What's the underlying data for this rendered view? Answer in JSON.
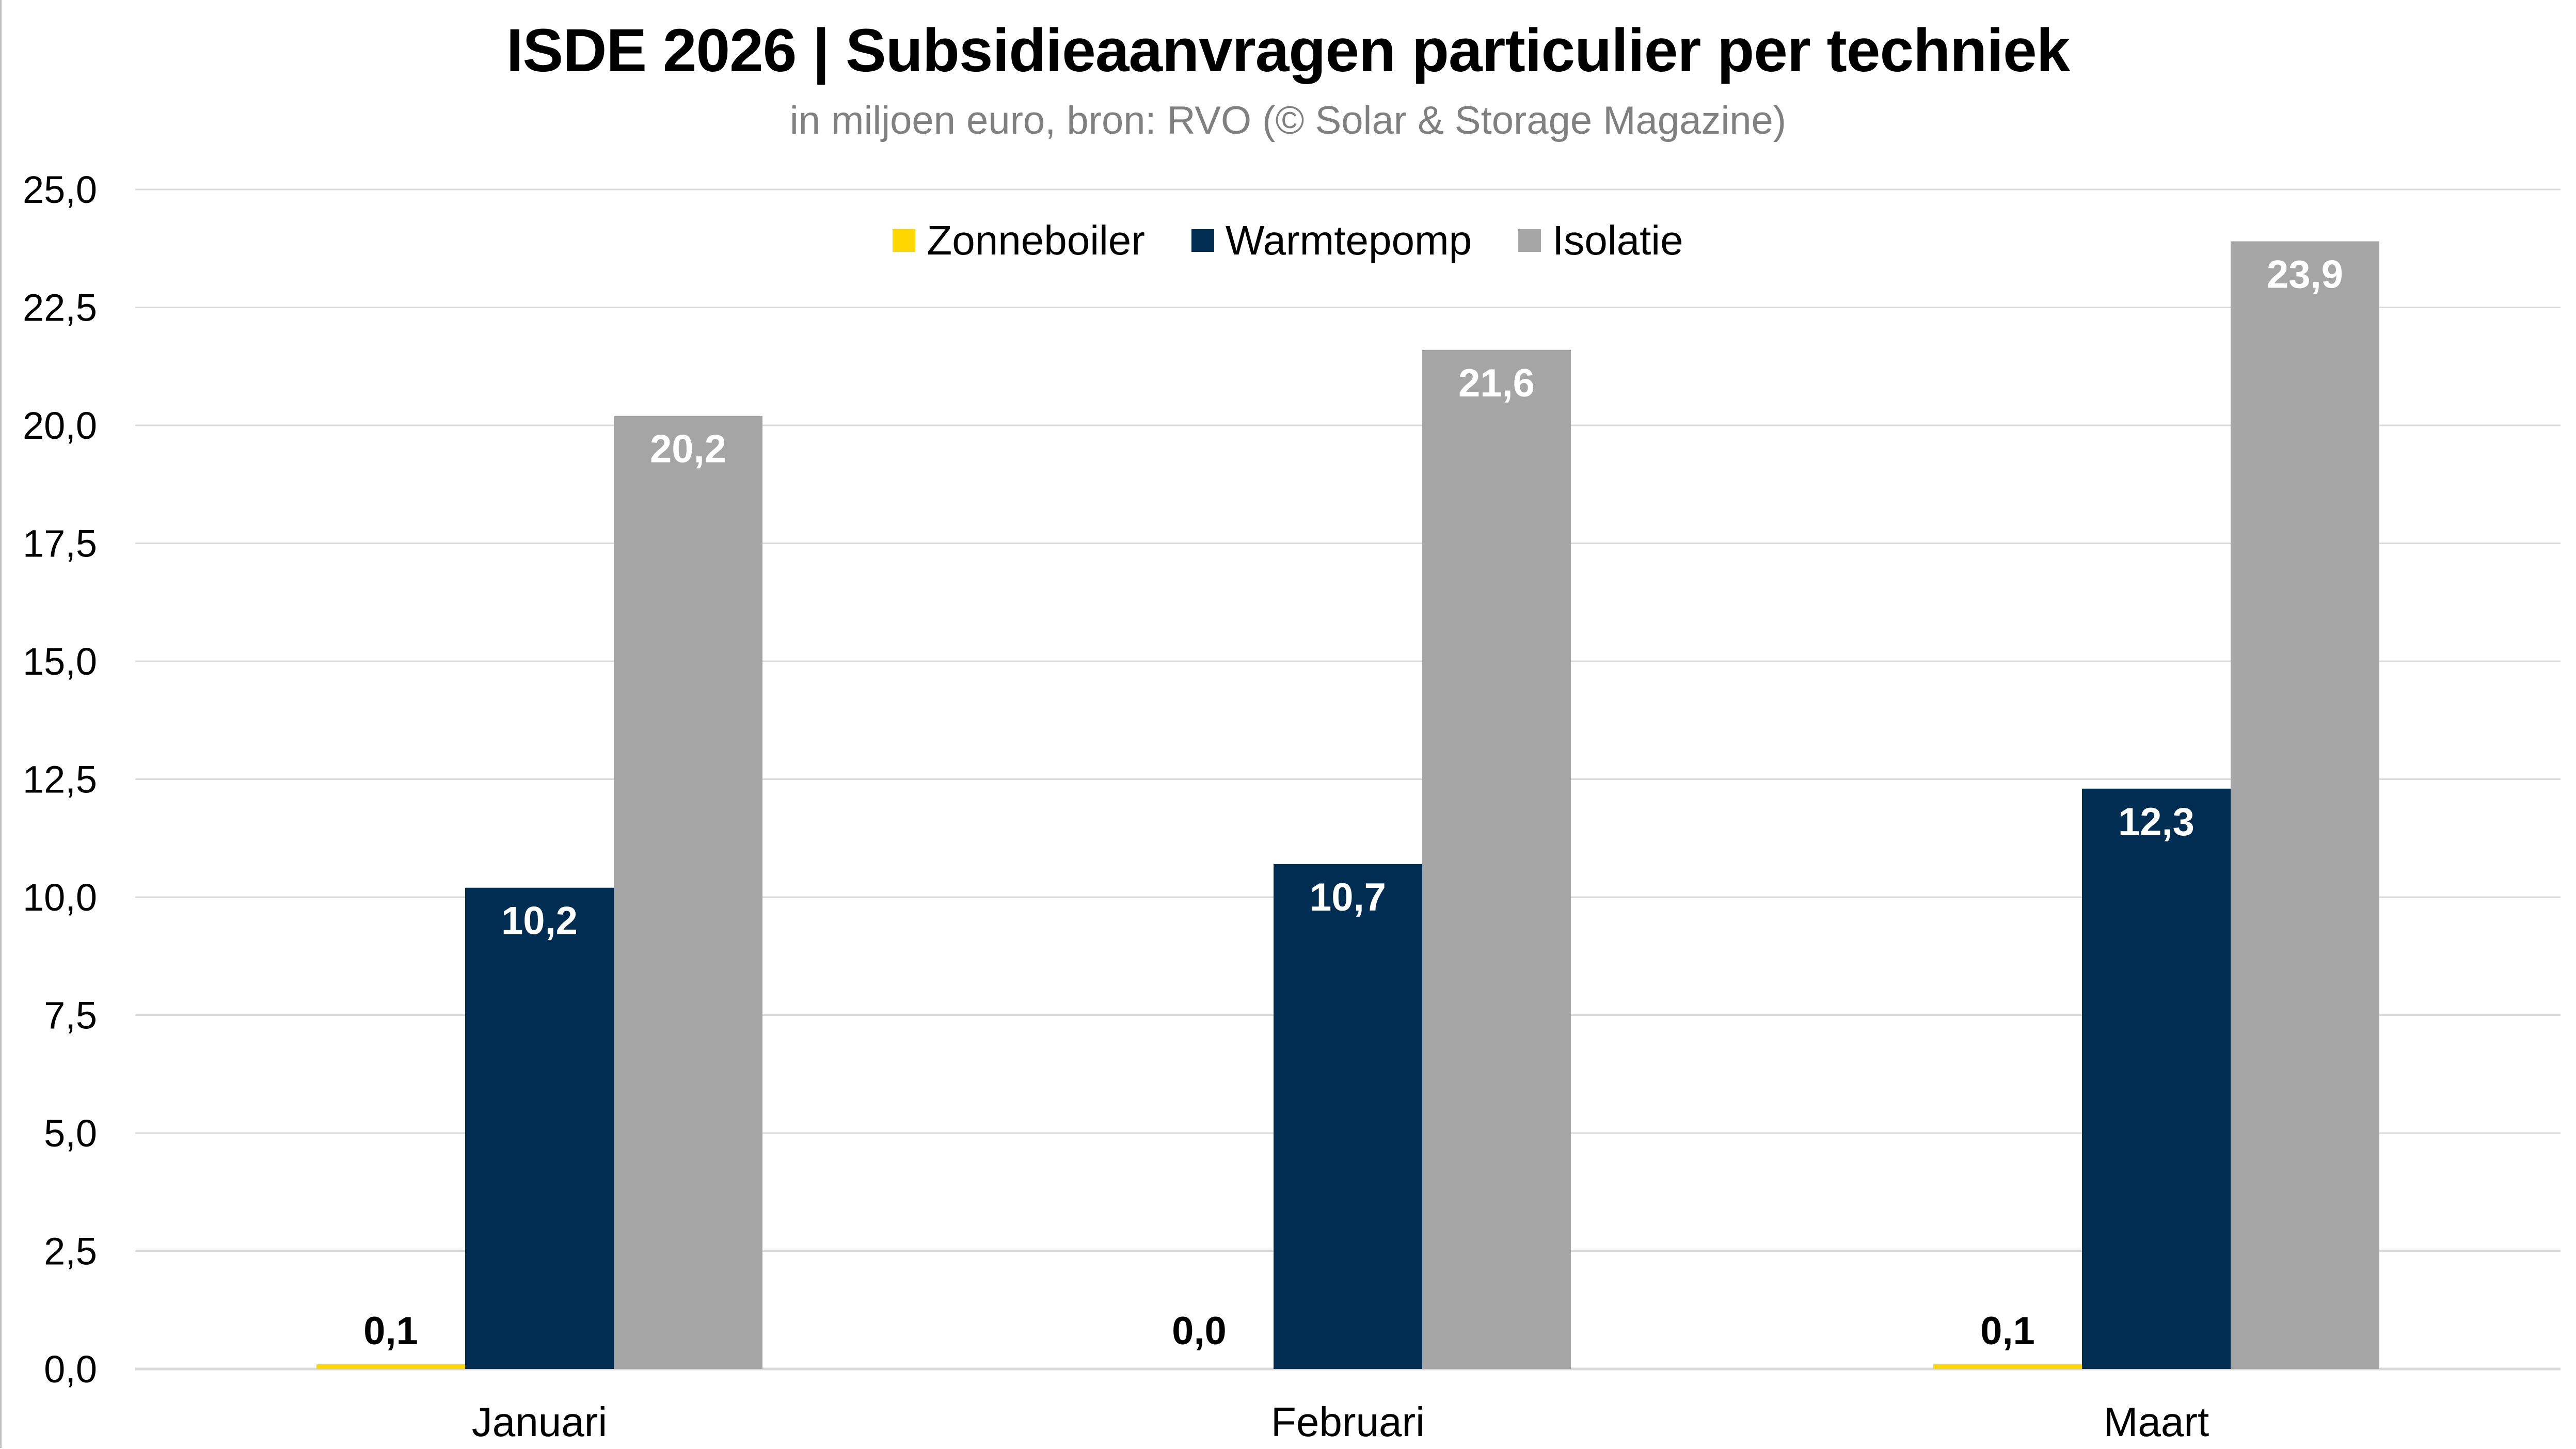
{
  "chart_data": {
    "type": "bar",
    "title": "ISDE 2026 | Subsidieaanvragen particulier per techniek",
    "subtitle": "in miljoen euro, bron: RVO (© Solar & Storage Magazine)",
    "xlabel": "",
    "ylabel": "",
    "categories": [
      "Januari",
      "Februari",
      "Maart"
    ],
    "series": [
      {
        "name": "Zonneboiler",
        "color": "#FFD700",
        "values": [
          0.1,
          0.0,
          0.1
        ],
        "labels": [
          "0,1",
          "0,0",
          "0,1"
        ]
      },
      {
        "name": "Warmtepomp",
        "color": "#002D51",
        "values": [
          10.2,
          10.7,
          12.3
        ],
        "labels": [
          "10,2",
          "10,7",
          "12,3"
        ]
      },
      {
        "name": "Isolatie",
        "color": "#A5A5A5",
        "values": [
          20.2,
          21.6,
          23.9
        ],
        "labels": [
          "20,2",
          "21,6",
          "23,9"
        ]
      }
    ],
    "ylim": [
      0,
      25
    ],
    "yticks": [
      0,
      2.5,
      5,
      7.5,
      10,
      12.5,
      15,
      17.5,
      20,
      22.5,
      25
    ],
    "ytick_labels": [
      "0,0",
      "2,5",
      "5,0",
      "7,5",
      "10,0",
      "12,5",
      "15,0",
      "17,5",
      "20,0",
      "22,5",
      "25,0"
    ],
    "grid": true,
    "legend_position": "top-center"
  }
}
